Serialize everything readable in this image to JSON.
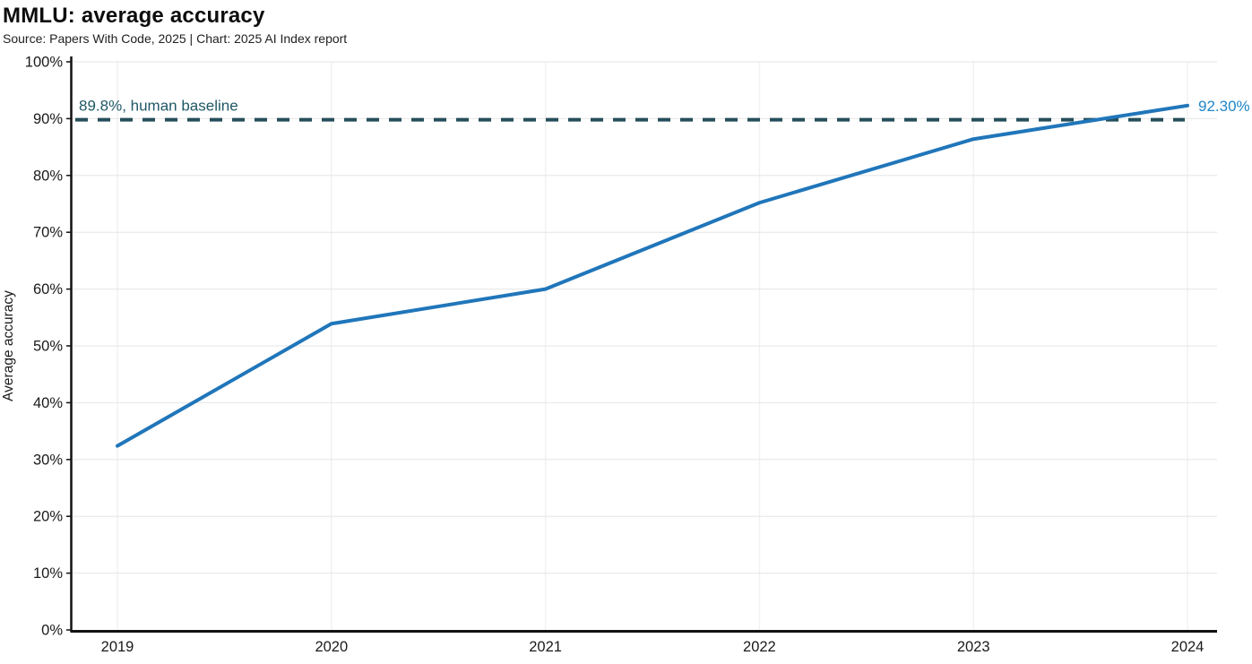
{
  "header": {
    "title": "MMLU: average accuracy",
    "source": "Source: Papers With Code, 2025 | Chart: 2025 AI Index report"
  },
  "chart_data": {
    "type": "line",
    "title": "MMLU: average accuracy",
    "xlabel": "",
    "ylabel": "Average accuracy",
    "x": [
      2019,
      2020,
      2021,
      2022,
      2023,
      2024
    ],
    "series": [
      {
        "name": "MMLU average accuracy",
        "values": [
          32.4,
          53.9,
          60.0,
          75.2,
          86.4,
          92.3
        ]
      }
    ],
    "end_label": "92.30%",
    "baseline": {
      "value": 89.8,
      "label": "89.8%, human baseline"
    },
    "ylim": [
      0,
      100
    ],
    "ytick_step": 10,
    "ytick_suffix": "%",
    "grid": true,
    "legend_position": "none",
    "colors": {
      "line": "#2076ba",
      "end_label": "#2186c7",
      "baseline_line": "#254e5a",
      "baseline_text": "#1f5866",
      "axis": "#111111",
      "grid_h": "#e6e6e6",
      "grid_v": "#f2f2f2",
      "tick_text": "#1a1a1a"
    }
  }
}
